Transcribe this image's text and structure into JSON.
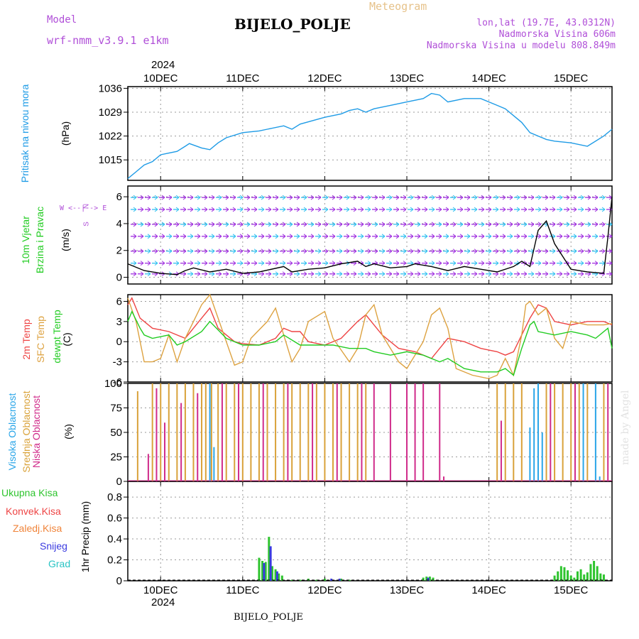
{
  "header": {
    "model_label": "Model",
    "model_name": "wrf-nmm_v3.9.1 e1km",
    "meteogram": "Meteogram",
    "station": "BIJELO_POLJE",
    "lonlat": "lon,lat (19.7E, 43.0312N)",
    "elev": "Nadmorska Visina 606m",
    "elev_model": "Nadmorska Visina u modelu 808.849m"
  },
  "year_top": "2024",
  "year_bottom": "2024",
  "footer_station": "BIJELO_POLJE",
  "watermark": "made by Angel",
  "panel_labels": {
    "pressure": [
      "Pritisak na nivou mora",
      "(hPa)"
    ],
    "wind": [
      "10m Vjetar",
      "Brzina i Pravac",
      "(m/s)"
    ],
    "wind_compass": [
      "N",
      "W <--|--> E",
      "S"
    ],
    "temp": [
      "2m Temp",
      "SFC Temp",
      "dewpt Temp",
      "(C)"
    ],
    "cloud": [
      "Visoka Oblacnost",
      "Srednja Oblacnost",
      "Niska Oblacnost",
      "(%)"
    ],
    "precip_legend": [
      "Ukupna Kisa",
      "Konvek.Kisa",
      "Zaledj.Kisa",
      "Snijeg",
      "Grad"
    ],
    "precip_unit": "1hr Precip (mm)"
  },
  "colors": {
    "pressure": "#1e9be6",
    "t2m": "#ee4444",
    "tsfc": "#dda240",
    "dewpt": "#22cc22",
    "cloud_high": "#29a5e8",
    "cloud_mid": "#d9a23a",
    "cloud_low": "#d02b8a",
    "precip_total": "#2ec42e",
    "precip_conv": "#ee4444",
    "precip_frz": "#f0843a",
    "snow": "#3a3ae0",
    "hail": "#29c4c4",
    "wind_magenta": "#a030e0",
    "wind_cyan": "#30c0f0",
    "purple_text": "#b04fd8"
  },
  "chart_data": [
    {
      "type": "line",
      "name": "pressure",
      "x_tick_labels": [
        "10DEC",
        "11DEC",
        "12DEC",
        "13DEC",
        "14DEC",
        "15DEC"
      ],
      "x_range_days": [
        9.6,
        15.5
      ],
      "ylim": [
        1009,
        1036.5
      ],
      "y_ticks": [
        1015,
        1022,
        1029,
        1036
      ],
      "x": [
        9.6,
        9.7,
        9.8,
        9.9,
        10.0,
        10.1,
        10.2,
        10.3,
        10.35,
        10.5,
        10.6,
        10.7,
        10.8,
        11.0,
        11.2,
        11.3,
        11.5,
        11.6,
        11.7,
        12.0,
        12.2,
        12.3,
        12.4,
        12.5,
        12.6,
        12.8,
        13.0,
        13.2,
        13.3,
        13.4,
        13.5,
        13.7,
        13.9,
        14.1,
        14.2,
        14.4,
        14.5,
        14.7,
        14.8,
        15.0,
        15.2,
        15.4,
        15.5
      ],
      "y": [
        1009.5,
        1011.5,
        1013.5,
        1014.5,
        1016.5,
        1017,
        1017.5,
        1019,
        1019.8,
        1018.5,
        1018,
        1020,
        1021.5,
        1023,
        1023.5,
        1024,
        1025,
        1024,
        1025.5,
        1027.5,
        1028.5,
        1029.5,
        1030,
        1029,
        1030,
        1031,
        1032,
        1033,
        1034.5,
        1034,
        1032,
        1033,
        1033,
        1031,
        1030,
        1026,
        1023,
        1021,
        1020.5,
        1020,
        1019,
        1022,
        1024
      ]
    },
    {
      "type": "line",
      "name": "wind",
      "ylim": [
        -0.5,
        6.8
      ],
      "y_ticks": [
        0,
        2,
        4,
        6
      ],
      "series": [
        {
          "name": "wind-speed",
          "x": [
            9.6,
            9.8,
            10.0,
            10.2,
            10.3,
            10.4,
            10.6,
            10.8,
            11.0,
            11.2,
            11.5,
            11.6,
            11.8,
            12.0,
            12.2,
            12.4,
            12.5,
            12.6,
            12.8,
            13.0,
            13.1,
            13.3,
            13.5,
            13.7,
            13.9,
            14.1,
            14.3,
            14.4,
            14.5,
            14.6,
            14.7,
            14.8,
            15.0,
            15.2,
            15.4,
            15.45,
            15.5
          ],
          "y": [
            1.0,
            0.5,
            0.3,
            0.2,
            0.5,
            0.7,
            0.4,
            0.6,
            0.3,
            0.4,
            0.8,
            0.4,
            0.6,
            0.7,
            1.0,
            1.2,
            0.8,
            1.0,
            0.7,
            0.8,
            1.0,
            0.8,
            0.5,
            0.8,
            0.6,
            0.4,
            0.8,
            1.2,
            0.8,
            3.5,
            4.2,
            2.5,
            0.6,
            0.4,
            0.3,
            3.0,
            6.0
          ]
        }
      ]
    },
    {
      "type": "line",
      "name": "temperature",
      "ylim": [
        -6,
        7
      ],
      "y_ticks": [
        -6,
        -3,
        0,
        3,
        6
      ],
      "series": [
        {
          "name": "2m Temp",
          "x": [
            9.6,
            9.65,
            9.75,
            9.9,
            10.1,
            10.3,
            10.5,
            10.6,
            10.7,
            10.9,
            11.0,
            11.2,
            11.4,
            11.5,
            11.6,
            11.7,
            11.8,
            12.0,
            12.2,
            12.4,
            12.5,
            12.7,
            12.9,
            13.1,
            13.3,
            13.5,
            13.7,
            13.9,
            14.1,
            14.2,
            14.3,
            14.4,
            14.5,
            14.6,
            14.7,
            14.8,
            15.0,
            15.2,
            15.4,
            15.5
          ],
          "y": [
            5.5,
            6.5,
            3.5,
            2.0,
            1.5,
            0.5,
            3.5,
            5.0,
            2.0,
            0.0,
            -0.3,
            -0.5,
            0.5,
            2.0,
            1.5,
            1.5,
            0.0,
            -0.5,
            0.5,
            3.0,
            4.0,
            1.0,
            -1.0,
            -1.5,
            -2.5,
            0.5,
            0.0,
            -1.0,
            -1.5,
            -2.0,
            -1.5,
            1.0,
            3.5,
            5.5,
            5.0,
            3.0,
            2.5,
            3.0,
            3.0,
            2.5
          ]
        },
        {
          "name": "SFC Temp",
          "x": [
            9.6,
            9.7,
            9.8,
            9.9,
            10.0,
            10.1,
            10.2,
            10.3,
            10.4,
            10.5,
            10.6,
            10.7,
            10.8,
            10.9,
            11.0,
            11.1,
            11.3,
            11.4,
            11.5,
            11.6,
            11.7,
            11.8,
            12.0,
            12.1,
            12.3,
            12.4,
            12.5,
            12.6,
            12.7,
            12.9,
            13.0,
            13.2,
            13.3,
            13.4,
            13.5,
            13.6,
            13.8,
            14.0,
            14.1,
            14.2,
            14.3,
            14.4,
            14.45,
            14.5,
            14.6,
            14.7,
            14.8,
            14.9,
            15.0,
            15.2,
            15.4,
            15.5
          ],
          "y": [
            6.5,
            3.0,
            -3.0,
            -3.0,
            -2.5,
            1.0,
            -3.0,
            0.5,
            3.0,
            5.5,
            7.0,
            3.5,
            0.0,
            -3.5,
            -3.0,
            0.5,
            3.0,
            5.0,
            1.0,
            -3.0,
            -1.0,
            3.0,
            4.5,
            0.5,
            -3.0,
            -1.0,
            4.0,
            5.5,
            1.0,
            -3.0,
            -4.0,
            0.0,
            4.0,
            5.0,
            2.0,
            -4.0,
            -5.0,
            -5.5,
            -5.0,
            -2.5,
            -5.0,
            1.0,
            5.5,
            6.0,
            4.0,
            5.0,
            0.5,
            -1.0,
            3.0,
            2.5,
            2.5,
            2.7
          ]
        },
        {
          "name": "dewpt Temp",
          "x": [
            9.6,
            9.65,
            9.75,
            9.8,
            9.9,
            10.1,
            10.2,
            10.3,
            10.5,
            10.6,
            10.8,
            11.0,
            11.2,
            11.4,
            11.5,
            11.7,
            11.9,
            12.1,
            12.3,
            12.5,
            12.6,
            12.8,
            13.0,
            13.2,
            13.4,
            13.5,
            13.7,
            13.9,
            14.1,
            14.2,
            14.3,
            14.4,
            14.5,
            14.55,
            14.6,
            14.8,
            15.0,
            15.2,
            15.3,
            15.45,
            15.5
          ],
          "y": [
            3.0,
            4.5,
            2.0,
            1.0,
            0.5,
            1.0,
            -0.5,
            0.0,
            1.5,
            3.0,
            0.5,
            -0.5,
            -0.5,
            0.0,
            1.0,
            -0.5,
            -0.5,
            -0.5,
            -1.0,
            -1.0,
            -1.5,
            -2.0,
            -1.5,
            -2.0,
            -3.0,
            -2.5,
            -4.0,
            -4.5,
            -4.5,
            -4.0,
            -5.0,
            -1.0,
            2.5,
            3.0,
            1.5,
            1.0,
            1.5,
            1.0,
            0.5,
            2.0,
            -1.0
          ]
        }
      ]
    },
    {
      "type": "bar",
      "name": "cloud",
      "ylim": [
        0,
        100
      ],
      "y_ticks": [
        0,
        25,
        50,
        75,
        100
      ],
      "series": [
        {
          "name": "Visoka Oblacnost",
          "x": [
            10.6,
            10.65,
            14.5,
            14.55,
            14.6,
            14.65,
            15.15,
            15.3,
            15.35
          ],
          "y": [
            100,
            35,
            55,
            95,
            100,
            50,
            100,
            100,
            5
          ]
        },
        {
          "name": "Srednja Oblacnost",
          "x": [
            9.72,
            9.9,
            10.0,
            10.1,
            10.2,
            10.3,
            10.4,
            10.5,
            10.55,
            10.62,
            10.7,
            10.8,
            10.9,
            11.0,
            11.1,
            11.2,
            11.3,
            11.4,
            11.5,
            11.6,
            11.7,
            11.8,
            11.9,
            12.0,
            12.1,
            12.2,
            12.3,
            12.4,
            12.5,
            14.1,
            14.2,
            14.3,
            14.4,
            14.7,
            14.8,
            14.9,
            15.0,
            15.1,
            15.2,
            15.4
          ],
          "y": [
            92,
            100,
            100,
            100,
            100,
            100,
            100,
            100,
            100,
            100,
            100,
            100,
            100,
            100,
            100,
            100,
            100,
            100,
            100,
            100,
            100,
            100,
            100,
            100,
            100,
            100,
            100,
            100,
            100,
            100,
            100,
            100,
            100,
            100,
            100,
            100,
            100,
            100,
            100,
            100
          ]
        },
        {
          "name": "Niska Oblacnost",
          "x": [
            9.85,
            9.95,
            10.05,
            10.25,
            10.45,
            10.75,
            10.95,
            11.25,
            11.55,
            11.85,
            12.15,
            12.45,
            12.6,
            12.8,
            13.0,
            13.1,
            13.2,
            13.4,
            13.45,
            14.15,
            14.75,
            15.05,
            15.45
          ],
          "y": [
            28,
            95,
            60,
            80,
            90,
            100,
            100,
            100,
            100,
            100,
            100,
            100,
            100,
            100,
            100,
            100,
            100,
            100,
            5,
            62,
            100,
            100,
            100
          ]
        }
      ]
    },
    {
      "type": "bar",
      "name": "precip",
      "ylim": [
        0,
        0.95
      ],
      "y_ticks": [
        0,
        0.2,
        0.4,
        0.6,
        0.8
      ],
      "series": [
        {
          "name": "Ukupna Kisa",
          "x": [
            11.2,
            11.24,
            11.28,
            11.32,
            11.36,
            11.4,
            11.44,
            11.48,
            11.6,
            11.7,
            11.8,
            11.9,
            12.0,
            12.2,
            12.3,
            13.2,
            13.24,
            13.28,
            13.32,
            14.8,
            14.84,
            14.88,
            14.92,
            14.96,
            15.0,
            15.04,
            15.08,
            15.12,
            15.16,
            15.2,
            15.24,
            15.28,
            15.32,
            15.36,
            15.4
          ],
          "y": [
            0.22,
            0.19,
            0.18,
            0.42,
            0.14,
            0.11,
            0.07,
            0.05,
            0.01,
            0.01,
            0.02,
            0.01,
            0.02,
            0.02,
            0.01,
            0.03,
            0.04,
            0.04,
            0.03,
            0.05,
            0.09,
            0.14,
            0.13,
            0.1,
            0.05,
            0.03,
            0.09,
            0.11,
            0.06,
            0.08,
            0.16,
            0.19,
            0.14,
            0.07,
            0.06
          ]
        },
        {
          "name": "Snijeg",
          "x": [
            11.26,
            11.34,
            11.42,
            12.08,
            12.18,
            13.26
          ],
          "y": [
            0.17,
            0.33,
            0.09,
            0.02,
            0.02,
            0.03
          ]
        }
      ]
    }
  ]
}
